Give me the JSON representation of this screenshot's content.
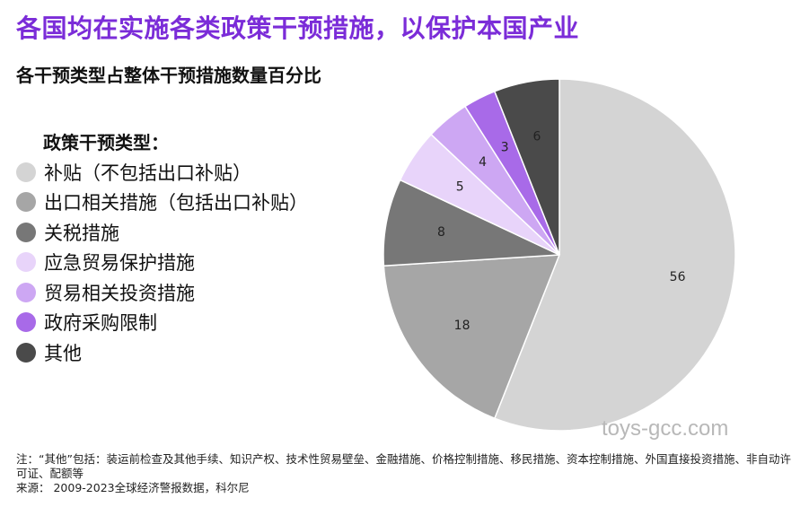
{
  "headline": "各国均在实施各类政策干预措施，以保护本国产业",
  "chart_data": {
    "type": "pie",
    "title": "各干预类型占整体干预措施数量百分比",
    "legend_title": "政策干预类型：",
    "legend_position": "left",
    "start_angle_deg": 0,
    "direction": "clockwise",
    "slices": [
      {
        "label": "补贴（不包括出口补贴）",
        "value": 56,
        "color": "#d4d4d4"
      },
      {
        "label": "出口相关措施（包括出口补贴）",
        "value": 18,
        "color": "#a6a6a6"
      },
      {
        "label": "关税措施",
        "value": 8,
        "color": "#777777"
      },
      {
        "label": "应急贸易保护措施",
        "value": 5,
        "color": "#e8d4fa"
      },
      {
        "label": "贸易相关投资措施",
        "value": 4,
        "color": "#cda7f3"
      },
      {
        "label": "政府采购限制",
        "value": 3,
        "color": "#a86ae8"
      },
      {
        "label": "其他",
        "value": 6,
        "color": "#4a4a4a"
      }
    ]
  },
  "watermark": "toys-gcc.com",
  "notes": {
    "note": "注：“其他”包括：装运前检查及其他手续、知识产权、技术性贸易壁垒、金融措施、价格控制措施、移民措施、资本控制措施、外国直接投资措施、非自动许可证、配额等",
    "source": "来源：  2009-2023全球经济警报数据，科尔尼"
  }
}
